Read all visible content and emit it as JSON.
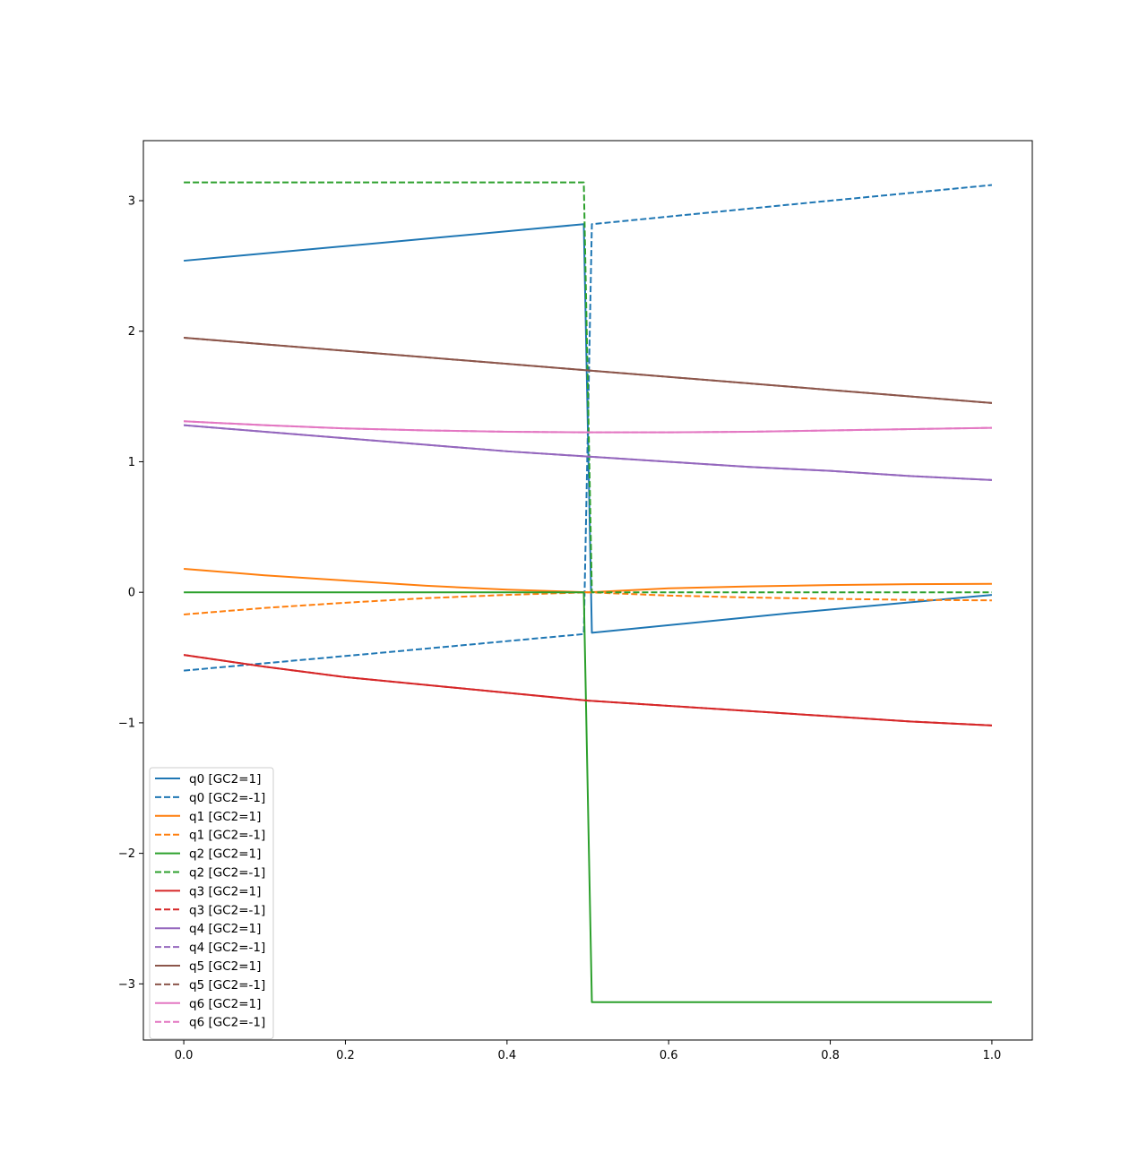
{
  "chart_data": {
    "type": "line",
    "title": "",
    "xlabel": "",
    "ylabel": "",
    "xlim": [
      -0.05,
      1.05
    ],
    "ylim": [
      -3.43,
      3.46
    ],
    "xticks": [
      0.0,
      0.2,
      0.4,
      0.6,
      0.8,
      1.0
    ],
    "xtick_labels": [
      "0.0",
      "0.2",
      "0.4",
      "0.6",
      "0.8",
      "1.0"
    ],
    "yticks": [
      -3,
      -2,
      -1,
      0,
      1,
      2,
      3
    ],
    "ytick_labels": [
      "−3",
      "−2",
      "−1",
      "0",
      "1",
      "2",
      "3"
    ],
    "grid": false,
    "legend_position": "lower-left",
    "series": [
      {
        "name": "q0 [GC2=1]",
        "color": "#1f77b4",
        "style": "solid",
        "x": [
          0.0,
          0.25,
          0.495,
          0.505,
          0.75,
          1.0
        ],
        "y": [
          2.54,
          2.68,
          2.82,
          -0.31,
          -0.16,
          -0.02
        ]
      },
      {
        "name": "q0 [GC2=-1]",
        "color": "#1f77b4",
        "style": "dashed",
        "x": [
          0.0,
          0.25,
          0.495,
          0.505,
          0.75,
          1.0
        ],
        "y": [
          -0.6,
          -0.46,
          -0.32,
          2.82,
          2.97,
          3.12
        ]
      },
      {
        "name": "q1 [GC2=1]",
        "color": "#ff7f0e",
        "style": "solid",
        "x": [
          0.0,
          0.1,
          0.2,
          0.3,
          0.4,
          0.5,
          0.6,
          0.7,
          0.8,
          0.9,
          1.0
        ],
        "y": [
          0.18,
          0.13,
          0.09,
          0.05,
          0.02,
          0.0,
          0.03,
          0.045,
          0.055,
          0.062,
          0.065
        ]
      },
      {
        "name": "q1 [GC2=-1]",
        "color": "#ff7f0e",
        "style": "dashed",
        "x": [
          0.0,
          0.1,
          0.2,
          0.3,
          0.4,
          0.5,
          0.6,
          0.7,
          0.8,
          0.9,
          1.0
        ],
        "y": [
          -0.17,
          -0.12,
          -0.08,
          -0.045,
          -0.02,
          0.0,
          -0.025,
          -0.04,
          -0.05,
          -0.058,
          -0.062
        ]
      },
      {
        "name": "q2 [GC2=1]",
        "color": "#2ca02c",
        "style": "solid",
        "x": [
          0.0,
          0.495,
          0.505,
          1.0
        ],
        "y": [
          0.0,
          0.0,
          -3.14,
          -3.14
        ]
      },
      {
        "name": "q2 [GC2=-1]",
        "color": "#2ca02c",
        "style": "dashed",
        "x": [
          0.0,
          0.495,
          0.505,
          1.0
        ],
        "y": [
          3.14,
          3.14,
          0.0,
          0.0
        ]
      },
      {
        "name": "q3 [GC2=1]",
        "color": "#d62728",
        "style": "solid",
        "x": [
          0.0,
          0.1,
          0.2,
          0.3,
          0.4,
          0.5,
          0.6,
          0.7,
          0.8,
          0.9,
          1.0
        ],
        "y": [
          -0.48,
          -0.57,
          -0.65,
          -0.71,
          -0.77,
          -0.83,
          -0.87,
          -0.91,
          -0.95,
          -0.99,
          -1.02
        ]
      },
      {
        "name": "q3 [GC2=-1]",
        "color": "#d62728",
        "style": "dashed",
        "x": [
          0.0,
          0.1,
          0.2,
          0.3,
          0.4,
          0.5,
          0.6,
          0.7,
          0.8,
          0.9,
          1.0
        ],
        "y": [
          -0.48,
          -0.57,
          -0.65,
          -0.71,
          -0.77,
          -0.83,
          -0.87,
          -0.91,
          -0.95,
          -0.99,
          -1.02
        ]
      },
      {
        "name": "q4 [GC2=1]",
        "color": "#9467bd",
        "style": "solid",
        "x": [
          0.0,
          0.1,
          0.2,
          0.3,
          0.4,
          0.5,
          0.6,
          0.7,
          0.8,
          0.9,
          1.0
        ],
        "y": [
          1.28,
          1.23,
          1.18,
          1.13,
          1.08,
          1.04,
          1.0,
          0.96,
          0.93,
          0.89,
          0.86
        ]
      },
      {
        "name": "q4 [GC2=-1]",
        "color": "#9467bd",
        "style": "dashed",
        "x": [
          0.0,
          0.1,
          0.2,
          0.3,
          0.4,
          0.5,
          0.6,
          0.7,
          0.8,
          0.9,
          1.0
        ],
        "y": [
          1.28,
          1.23,
          1.18,
          1.13,
          1.08,
          1.04,
          1.0,
          0.96,
          0.93,
          0.89,
          0.86
        ]
      },
      {
        "name": "q5 [GC2=1]",
        "color": "#8c564b",
        "style": "solid",
        "x": [
          0.0,
          0.1,
          0.2,
          0.3,
          0.4,
          0.5,
          0.6,
          0.7,
          0.8,
          0.9,
          1.0
        ],
        "y": [
          1.95,
          1.9,
          1.85,
          1.8,
          1.75,
          1.7,
          1.65,
          1.6,
          1.55,
          1.5,
          1.45
        ]
      },
      {
        "name": "q5 [GC2=-1]",
        "color": "#8c564b",
        "style": "dashed",
        "x": [
          0.0,
          0.1,
          0.2,
          0.3,
          0.4,
          0.5,
          0.6,
          0.7,
          0.8,
          0.9,
          1.0
        ],
        "y": [
          1.95,
          1.9,
          1.85,
          1.8,
          1.75,
          1.7,
          1.65,
          1.6,
          1.55,
          1.5,
          1.45
        ]
      },
      {
        "name": "q6 [GC2=1]",
        "color": "#e377c2",
        "style": "solid",
        "x": [
          0.0,
          0.1,
          0.2,
          0.3,
          0.4,
          0.5,
          0.6,
          0.7,
          0.8,
          0.9,
          1.0
        ],
        "y": [
          1.31,
          1.28,
          1.255,
          1.24,
          1.23,
          1.225,
          1.225,
          1.23,
          1.24,
          1.25,
          1.26
        ]
      },
      {
        "name": "q6 [GC2=-1]",
        "color": "#e377c2",
        "style": "dashed",
        "x": [
          0.0,
          0.1,
          0.2,
          0.3,
          0.4,
          0.5,
          0.6,
          0.7,
          0.8,
          0.9,
          1.0
        ],
        "y": [
          1.31,
          1.28,
          1.255,
          1.24,
          1.23,
          1.225,
          1.225,
          1.23,
          1.24,
          1.25,
          1.26
        ]
      }
    ]
  }
}
